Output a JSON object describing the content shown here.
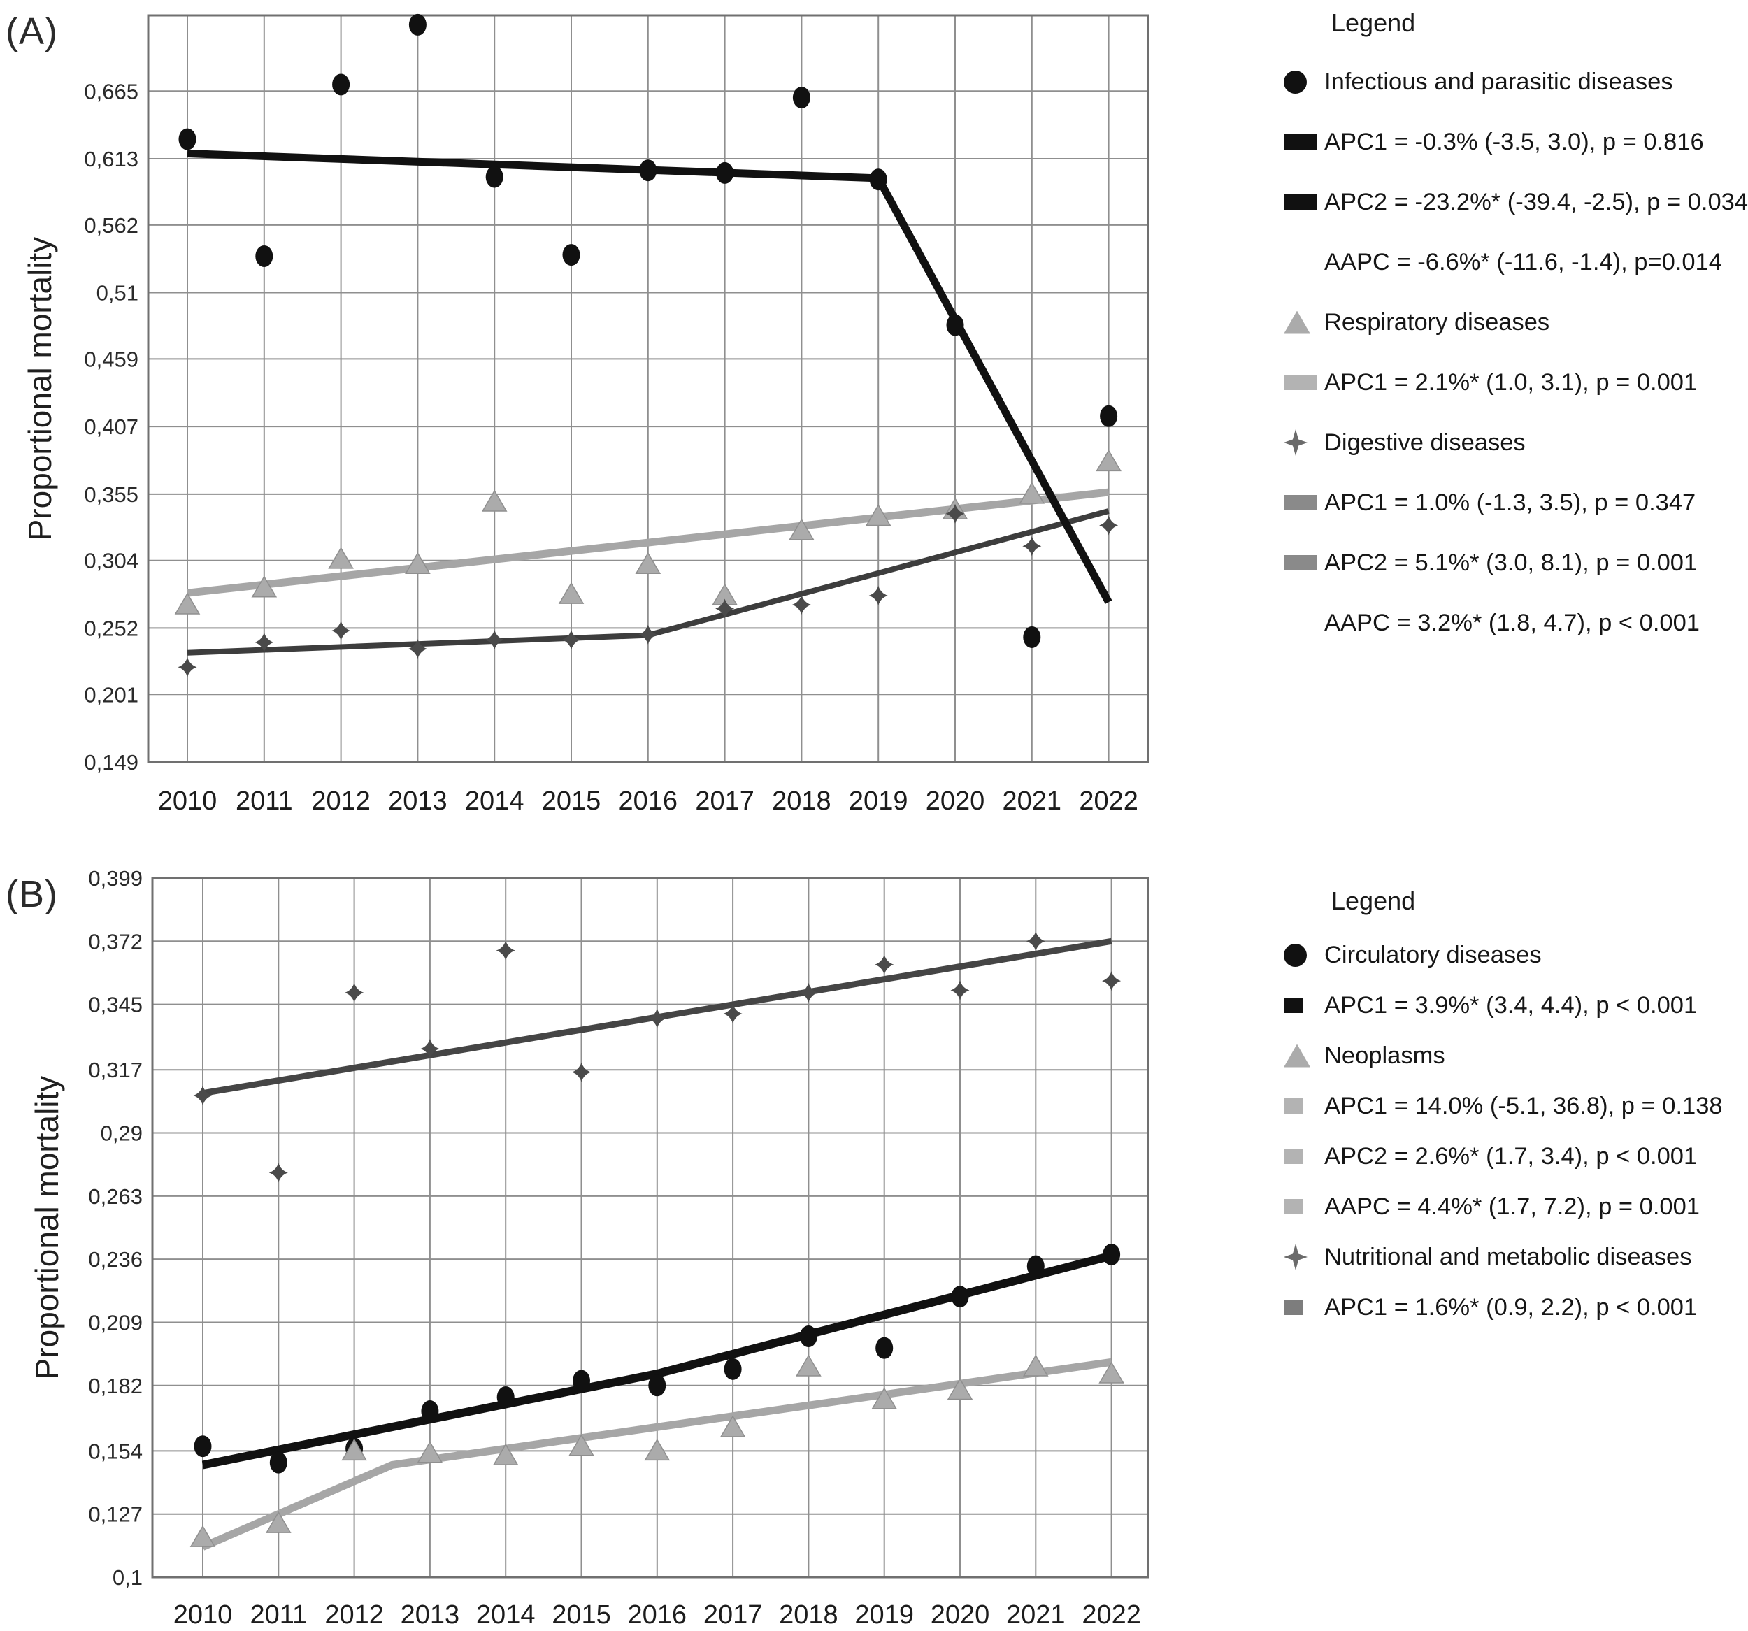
{
  "figure": {
    "background": "#ffffff",
    "grid_color": "#8f8f8f",
    "frame_color": "#707070",
    "tick_text_color": "#2a2a2a"
  },
  "chart_data": [
    {
      "type": "line",
      "panel_label": "(A)",
      "ylabel": "Proportional mortality",
      "ylim": [
        0.149,
        0.7232
      ],
      "grid": true,
      "legend_position": "right",
      "years": [
        2010,
        2011,
        2012,
        2013,
        2014,
        2015,
        2016,
        2017,
        2018,
        2019,
        2020,
        2021,
        2022
      ],
      "y_ticks": [
        {
          "label": "0,665",
          "value": 0.665
        },
        {
          "label": "0,613",
          "value": 0.613
        },
        {
          "label": "0,562",
          "value": 0.562
        },
        {
          "label": "0,51",
          "value": 0.51
        },
        {
          "label": "0,459",
          "value": 0.459
        },
        {
          "label": "0,407",
          "value": 0.407
        },
        {
          "label": "0,355",
          "value": 0.355
        },
        {
          "label": "0,304",
          "value": 0.304
        },
        {
          "label": "0,252",
          "value": 0.252
        },
        {
          "label": "0,201",
          "value": 0.201
        },
        {
          "label": "0,149",
          "value": 0.149
        }
      ],
      "series": [
        {
          "name": "Infectious and parasitic diseases",
          "marker": "circle",
          "color": "#111111",
          "values": [
            0.628,
            0.538,
            0.67,
            0.716,
            0.599,
            0.539,
            0.604,
            0.602,
            0.66,
            0.597,
            0.485,
            0.245,
            0.415
          ],
          "trend": {
            "color": "#111111",
            "width": 11,
            "points": [
              [
                2010,
                0.617
              ],
              [
                2019,
                0.598
              ],
              [
                2022,
                0.272
              ]
            ]
          }
        },
        {
          "name": "Respiratory diseases",
          "marker": "triangle",
          "color": "#ababab",
          "values": [
            0.27,
            0.283,
            0.305,
            0.301,
            0.349,
            0.278,
            0.301,
            0.277,
            0.327,
            0.338,
            0.343,
            0.355,
            0.38
          ],
          "trend": {
            "color": "#a6a6a6",
            "width": 11,
            "points": [
              [
                2010,
                0.279
              ],
              [
                2022,
                0.3565
              ]
            ]
          }
        },
        {
          "name": "Digestive diseases",
          "marker": "diamond-star",
          "color": "#4a4a4a",
          "values": [
            0.222,
            0.241,
            0.25,
            0.236,
            0.243,
            0.243,
            0.247,
            0.267,
            0.27,
            0.277,
            0.34,
            0.315,
            0.331
          ],
          "trend": {
            "color": "#3d3d3d",
            "width": 8,
            "points": [
              [
                2010,
                0.233
              ],
              [
                2016,
                0.2465
              ],
              [
                2022,
                0.342
              ]
            ]
          }
        }
      ],
      "legend": {
        "title": "Legend",
        "items": [
          {
            "swatch": "circle",
            "color": "#111111",
            "text": "Infectious and parasitic diseases"
          },
          {
            "swatch": "bar",
            "color": "#111111",
            "text": "APC1 = -0.3% (-3.5, 3.0), p = 0.816"
          },
          {
            "swatch": "bar",
            "color": "#111111",
            "text": "APC2 = -23.2%* (-39.4, -2.5), p = 0.034"
          },
          {
            "swatch": "none",
            "color": "",
            "text": "AAPC = -6.6%* (-11.6, -1.4), p=0.014"
          },
          {
            "swatch": "triangle",
            "color": "#ababab",
            "text": "Respiratory diseases"
          },
          {
            "swatch": "bar",
            "color": "#b3b3b3",
            "text": "APC1 = 2.1%* (1.0, 3.1), p = 0.001"
          },
          {
            "swatch": "diamond",
            "color": "#6b6b6b",
            "text": "Digestive diseases"
          },
          {
            "swatch": "bar",
            "color": "#8a8a8a",
            "text": "APC1 = 1.0% (-1.3, 3.5), p = 0.347"
          },
          {
            "swatch": "bar",
            "color": "#8a8a8a",
            "text": "APC2 = 5.1%* (3.0, 8.1), p = 0.001"
          },
          {
            "swatch": "none",
            "color": "",
            "text": "AAPC = 3.2%* (1.8, 4.7), p < 0.001"
          }
        ]
      }
    },
    {
      "type": "line",
      "panel_label": "(B)",
      "ylabel": "Proportional mortality",
      "ylim": [
        0.1,
        0.399
      ],
      "grid": true,
      "legend_position": "right",
      "years": [
        2010,
        2011,
        2012,
        2013,
        2014,
        2015,
        2016,
        2017,
        2018,
        2019,
        2020,
        2021,
        2022
      ],
      "y_ticks": [
        {
          "label": "0,399",
          "value": 0.399
        },
        {
          "label": "0,372",
          "value": 0.372
        },
        {
          "label": "0,345",
          "value": 0.345
        },
        {
          "label": "0,317",
          "value": 0.317
        },
        {
          "label": "0,29",
          "value": 0.29
        },
        {
          "label": "0,263",
          "value": 0.263
        },
        {
          "label": "0,236",
          "value": 0.236
        },
        {
          "label": "0,209",
          "value": 0.209
        },
        {
          "label": "0,182",
          "value": 0.182
        },
        {
          "label": "0,154",
          "value": 0.154
        },
        {
          "label": "0,127",
          "value": 0.127
        },
        {
          "label": "0,1",
          "value": 0.1
        }
      ],
      "series": [
        {
          "name": "Circulatory diseases",
          "marker": "circle",
          "color": "#111111",
          "values": [
            0.156,
            0.149,
            0.155,
            0.171,
            0.177,
            0.184,
            0.182,
            0.189,
            0.203,
            0.198,
            0.22,
            0.233,
            0.238
          ],
          "trend": {
            "color": "#111111",
            "width": 12,
            "points": [
              [
                2010,
                0.148
              ],
              [
                2016,
                0.187
              ],
              [
                2022,
                0.2375
              ]
            ]
          }
        },
        {
          "name": "Neoplasms",
          "marker": "triangle",
          "color": "#ababab",
          "values": [
            0.117,
            0.123,
            0.154,
            0.153,
            0.152,
            0.156,
            0.154,
            0.164,
            0.19,
            0.176,
            0.18,
            0.19,
            0.187
          ],
          "trend": {
            "color": "#a6a6a6",
            "width": 11,
            "points": [
              [
                2010,
                0.113
              ],
              [
                2012.5,
                0.148
              ],
              [
                2022,
                0.192
              ]
            ]
          }
        },
        {
          "name": "Nutritional and metabolic diseases",
          "marker": "diamond-star",
          "color": "#4a4a4a",
          "values": [
            0.306,
            0.273,
            0.35,
            0.326,
            0.368,
            0.316,
            0.339,
            0.341,
            0.35,
            0.362,
            0.351,
            0.372,
            0.355
          ],
          "trend": {
            "color": "#454545",
            "width": 9,
            "points": [
              [
                2010,
                0.307
              ],
              [
                2022,
                0.372
              ]
            ]
          }
        }
      ],
      "legend": {
        "title": "Legend",
        "items": [
          {
            "swatch": "circle",
            "color": "#111111",
            "text": "Circulatory diseases"
          },
          {
            "swatch": "bar",
            "color": "#111111",
            "text": "APC1 = 3.9%* (3.4, 4.4), p < 0.001"
          },
          {
            "swatch": "triangle",
            "color": "#ababab",
            "text": "Neoplasms"
          },
          {
            "swatch": "bar",
            "color": "#b3b3b3",
            "text": "APC1 = 14.0% (-5.1, 36.8), p = 0.138"
          },
          {
            "swatch": "bar",
            "color": "#b3b3b3",
            "text": "APC2 = 2.6%* (1.7, 3.4), p < 0.001"
          },
          {
            "swatch": "bar",
            "color": "#b3b3b3",
            "text": "AAPC = 4.4%* (1.7, 7.2), p = 0.001"
          },
          {
            "swatch": "diamond",
            "color": "#6b6b6b",
            "text": "Nutritional and metabolic diseases"
          },
          {
            "swatch": "bar",
            "color": "#7d7d7d",
            "text": "APC1 = 1.6%* (0.9, 2.2), p < 0.001"
          }
        ]
      }
    }
  ]
}
